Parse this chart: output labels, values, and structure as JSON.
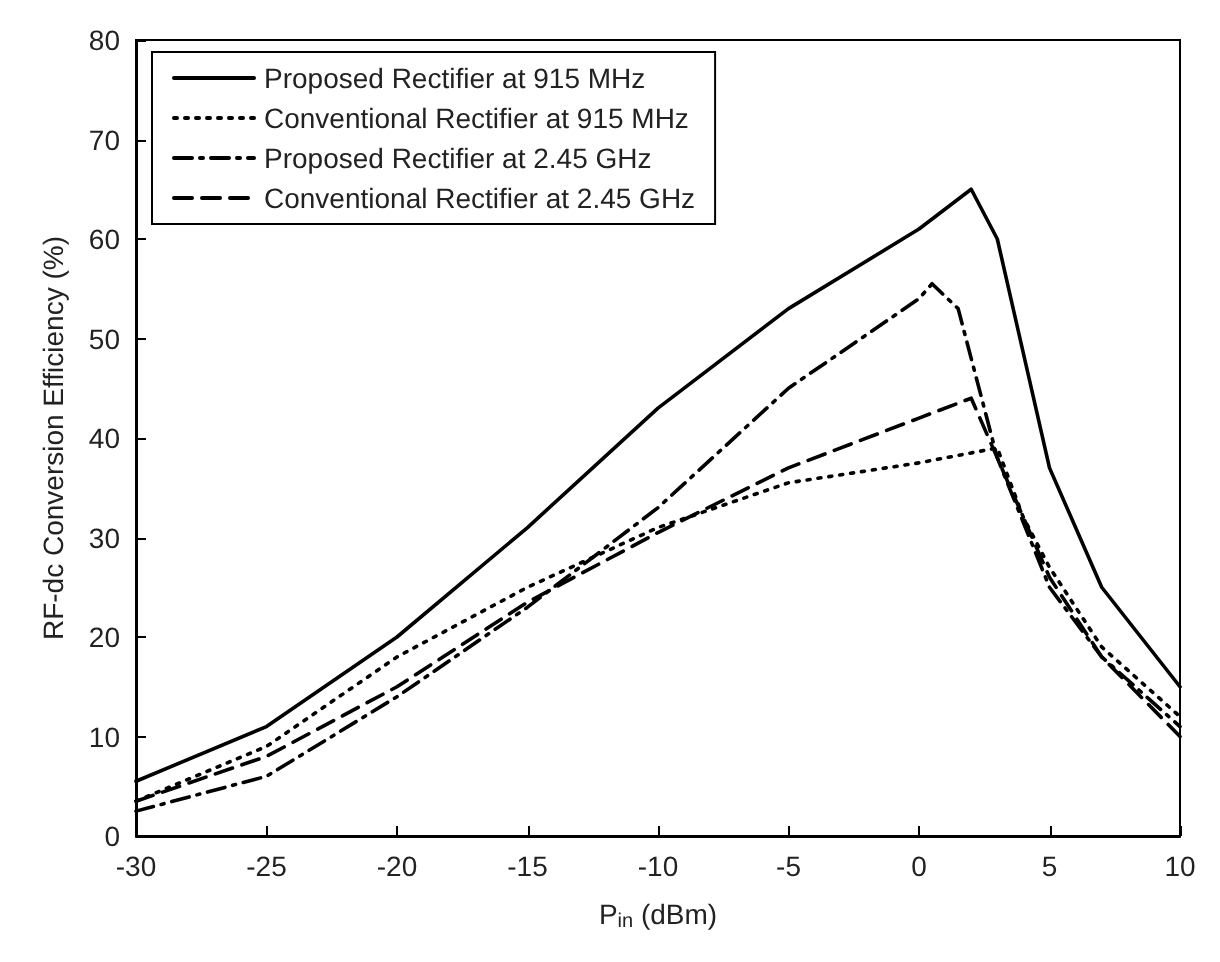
{
  "chart_data": {
    "type": "line",
    "xlabel": "P$_{in}$ (dBm)",
    "ylabel": "RF-dc Conversion Efficiency (%)",
    "xlim": [
      -30,
      10
    ],
    "xticks": [
      -30,
      -25,
      -20,
      -15,
      -10,
      -5,
      0,
      5,
      10
    ],
    "ylim": [
      0,
      80
    ],
    "yticks": [
      0,
      10,
      20,
      30,
      40,
      50,
      60,
      70,
      80
    ],
    "grid": false,
    "legend": "top left",
    "marker": "none",
    "series": [
      {
        "name": "Proposed Rectifier at 915 MHz",
        "color": "#000000",
        "line_style": "solid",
        "x": [
          -30,
          -25,
          -20,
          -15,
          -10,
          -5,
          0,
          2,
          3,
          5,
          7,
          10
        ],
        "values": [
          5.5,
          11,
          20,
          31,
          43,
          53,
          61,
          65,
          60,
          37,
          25,
          15
        ]
      },
      {
        "name": "Conventional Rectifier at 915 MHz",
        "color": "#000000",
        "line_style": "dotted",
        "x": [
          -30,
          -25,
          -20,
          -15,
          -10,
          -5,
          0,
          3,
          4,
          5,
          7,
          10
        ],
        "values": [
          3.5,
          9,
          18,
          25,
          31,
          35.5,
          37.5,
          39,
          32,
          27,
          19,
          12
        ]
      },
      {
        "name": "Proposed Rectifier at 2.45 GHz",
        "color": "#000000",
        "line_style": "dashdot",
        "x": [
          -30,
          -25,
          -20,
          -15,
          -10,
          -5,
          0,
          0.5,
          1.5,
          3,
          5,
          7,
          10
        ],
        "values": [
          2.5,
          6,
          14,
          23,
          33,
          45,
          54,
          55.5,
          53,
          38,
          25,
          18,
          11
        ]
      },
      {
        "name": "Conventional Rectifier at 2.45 GHz",
        "color": "#000000",
        "line_style": "dashed",
        "x": [
          -30,
          -25,
          -20,
          -15,
          -10,
          -5,
          0,
          2,
          3,
          5,
          7,
          10
        ],
        "values": [
          3.5,
          8,
          15,
          23.5,
          30.5,
          37,
          42,
          44,
          38,
          26,
          18,
          10
        ]
      }
    ]
  }
}
